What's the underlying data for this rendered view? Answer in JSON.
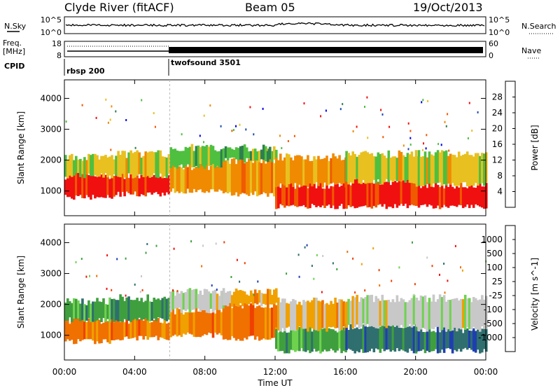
{
  "header": {
    "station": "Clyde River (fitACF)",
    "beam": "Beam 05",
    "date": "19/Oct/2013"
  },
  "noise_panel": {
    "left_label": "N.Sky",
    "left_ticks": [
      "10^5",
      "10^0"
    ],
    "right_ticks": [
      "10^5",
      "10^0"
    ],
    "right_label": "N.Search"
  },
  "freq_panel": {
    "left_label_line1": "Freq.",
    "left_label_line2": "[MHz]",
    "left_ticks": [
      "18",
      "8"
    ],
    "right_ticks": [
      "60",
      "0"
    ],
    "right_label": "Nave"
  },
  "cpid_panel": {
    "label": "CPID",
    "modes": [
      {
        "name": "rbsp 200",
        "start_hour": 0
      },
      {
        "name": "twofsound 3501",
        "start_hour": 6
      }
    ]
  },
  "chart_data": [
    {
      "type": "heatmap",
      "panel": "power",
      "xlabel": "Time UT",
      "ylabel": "Slant Range [km]",
      "xlim": [
        0,
        24
      ],
      "ylim": [
        200,
        4600
      ],
      "xticks": [
        "00:00",
        "04:00",
        "08:00",
        "12:00",
        "16:00",
        "20:00",
        "00:00"
      ],
      "yticks": [
        1000,
        2000,
        3000,
        4000
      ],
      "colorbar": {
        "label": "Power [dB]",
        "ticks": [
          "28",
          "24",
          "20",
          "16",
          "12",
          "8",
          "4"
        ],
        "colors": [
          "#0000ee",
          "#1f4bb0",
          "#2f7f4f",
          "#4fbf3f",
          "#e8c020",
          "#f08a00",
          "#f05a00",
          "#f01010"
        ]
      },
      "bands": [
        {
          "t0": 0.0,
          "t1": 3.0,
          "r0": 800,
          "r1": 1500,
          "level": 7
        },
        {
          "t0": 0.0,
          "t1": 3.0,
          "r0": 1500,
          "r1": 2100,
          "level": 4
        },
        {
          "t0": 3.0,
          "t1": 6.0,
          "r0": 900,
          "r1": 1500,
          "level": 7
        },
        {
          "t0": 3.0,
          "t1": 6.0,
          "r0": 1500,
          "r1": 2200,
          "level": 4
        },
        {
          "t0": 6.0,
          "t1": 9.0,
          "r0": 1000,
          "r1": 1800,
          "level": 5
        },
        {
          "t0": 6.0,
          "t1": 9.0,
          "r0": 1800,
          "r1": 2400,
          "level": 3
        },
        {
          "t0": 9.0,
          "t1": 12.0,
          "r0": 900,
          "r1": 2000,
          "level": 5
        },
        {
          "t0": 9.0,
          "t1": 12.0,
          "r0": 2000,
          "r1": 2400,
          "level": 3
        },
        {
          "t0": 12.0,
          "t1": 16.0,
          "r0": 500,
          "r1": 1200,
          "level": 7
        },
        {
          "t0": 12.0,
          "t1": 16.0,
          "r0": 1200,
          "r1": 2100,
          "level": 5
        },
        {
          "t0": 16.0,
          "t1": 20.0,
          "r0": 500,
          "r1": 1300,
          "level": 7
        },
        {
          "t0": 16.0,
          "t1": 20.0,
          "r0": 1300,
          "r1": 2200,
          "level": 4
        },
        {
          "t0": 20.0,
          "t1": 24.0,
          "r0": 500,
          "r1": 1200,
          "level": 7
        },
        {
          "t0": 20.0,
          "t1": 24.0,
          "r0": 1200,
          "r1": 2200,
          "level": 4
        }
      ]
    },
    {
      "type": "heatmap",
      "panel": "velocity",
      "xlabel": "Time UT",
      "ylabel": "Slant Range [km]",
      "xlim": [
        0,
        24
      ],
      "ylim": [
        200,
        4600
      ],
      "xticks": [
        "00:00",
        "04:00",
        "08:00",
        "12:00",
        "16:00",
        "20:00",
        "00:00"
      ],
      "yticks": [
        1000,
        2000,
        3000,
        4000
      ],
      "colorbar": {
        "label": "Velocity [m s^-1]",
        "ticks": [
          "1000",
          "500",
          "100",
          "25",
          "-25",
          "-100",
          "-500",
          "-1000"
        ],
        "colors": [
          "#1f3fb0",
          "#2f6f6f",
          "#3f9f3f",
          "#6fd24f",
          "#c8c8c8",
          "#f0a000",
          "#f07000",
          "#f04000",
          "#f01010"
        ]
      },
      "bands": [
        {
          "t0": 0.0,
          "t1": 3.0,
          "r0": 800,
          "r1": 1500,
          "level": 6
        },
        {
          "t0": 0.0,
          "t1": 3.0,
          "r0": 1500,
          "r1": 2100,
          "level": 2
        },
        {
          "t0": 3.0,
          "t1": 6.0,
          "r0": 900,
          "r1": 1500,
          "level": 6
        },
        {
          "t0": 3.0,
          "t1": 6.0,
          "r0": 1500,
          "r1": 2200,
          "level": 2
        },
        {
          "t0": 6.0,
          "t1": 9.0,
          "r0": 1000,
          "r1": 1800,
          "level": 6
        },
        {
          "t0": 6.0,
          "t1": 9.0,
          "r0": 1800,
          "r1": 2400,
          "level": 4
        },
        {
          "t0": 9.0,
          "t1": 12.0,
          "r0": 900,
          "r1": 2000,
          "level": 6
        },
        {
          "t0": 9.0,
          "t1": 12.0,
          "r0": 2000,
          "r1": 2400,
          "level": 5
        },
        {
          "t0": 12.0,
          "t1": 16.0,
          "r0": 500,
          "r1": 1200,
          "level": 2
        },
        {
          "t0": 12.0,
          "t1": 16.0,
          "r0": 1200,
          "r1": 2100,
          "level": 5
        },
        {
          "t0": 16.0,
          "t1": 20.0,
          "r0": 500,
          "r1": 1300,
          "level": 1
        },
        {
          "t0": 16.0,
          "t1": 20.0,
          "r0": 1300,
          "r1": 2200,
          "level": 4
        },
        {
          "t0": 20.0,
          "t1": 24.0,
          "r0": 500,
          "r1": 1200,
          "level": 1
        },
        {
          "t0": 20.0,
          "t1": 24.0,
          "r0": 1200,
          "r1": 2200,
          "level": 4
        }
      ]
    }
  ]
}
